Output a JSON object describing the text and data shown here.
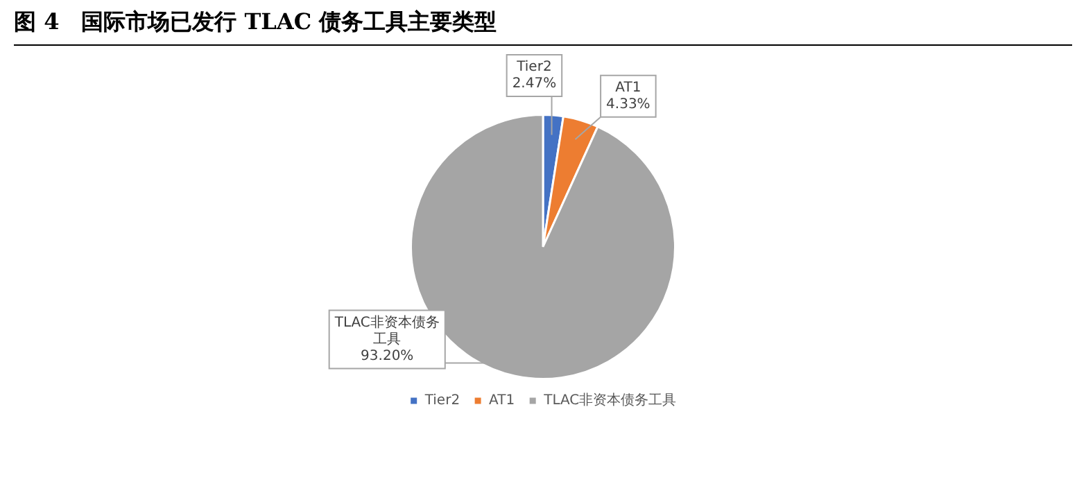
{
  "chart_data": {
    "type": "pie",
    "title": "图 4　国际市场已发行 TLAC 债务工具主要类型",
    "categories": [
      "Tier2",
      "AT1",
      "TLAC非资本债务工具"
    ],
    "values": [
      2.47,
      4.33,
      93.2
    ],
    "value_labels": [
      "2.47%",
      "4.33%",
      "93.20%"
    ],
    "colors": [
      "#4472c4",
      "#ed7d31",
      "#a5a5a5"
    ],
    "legend": "bottom"
  }
}
